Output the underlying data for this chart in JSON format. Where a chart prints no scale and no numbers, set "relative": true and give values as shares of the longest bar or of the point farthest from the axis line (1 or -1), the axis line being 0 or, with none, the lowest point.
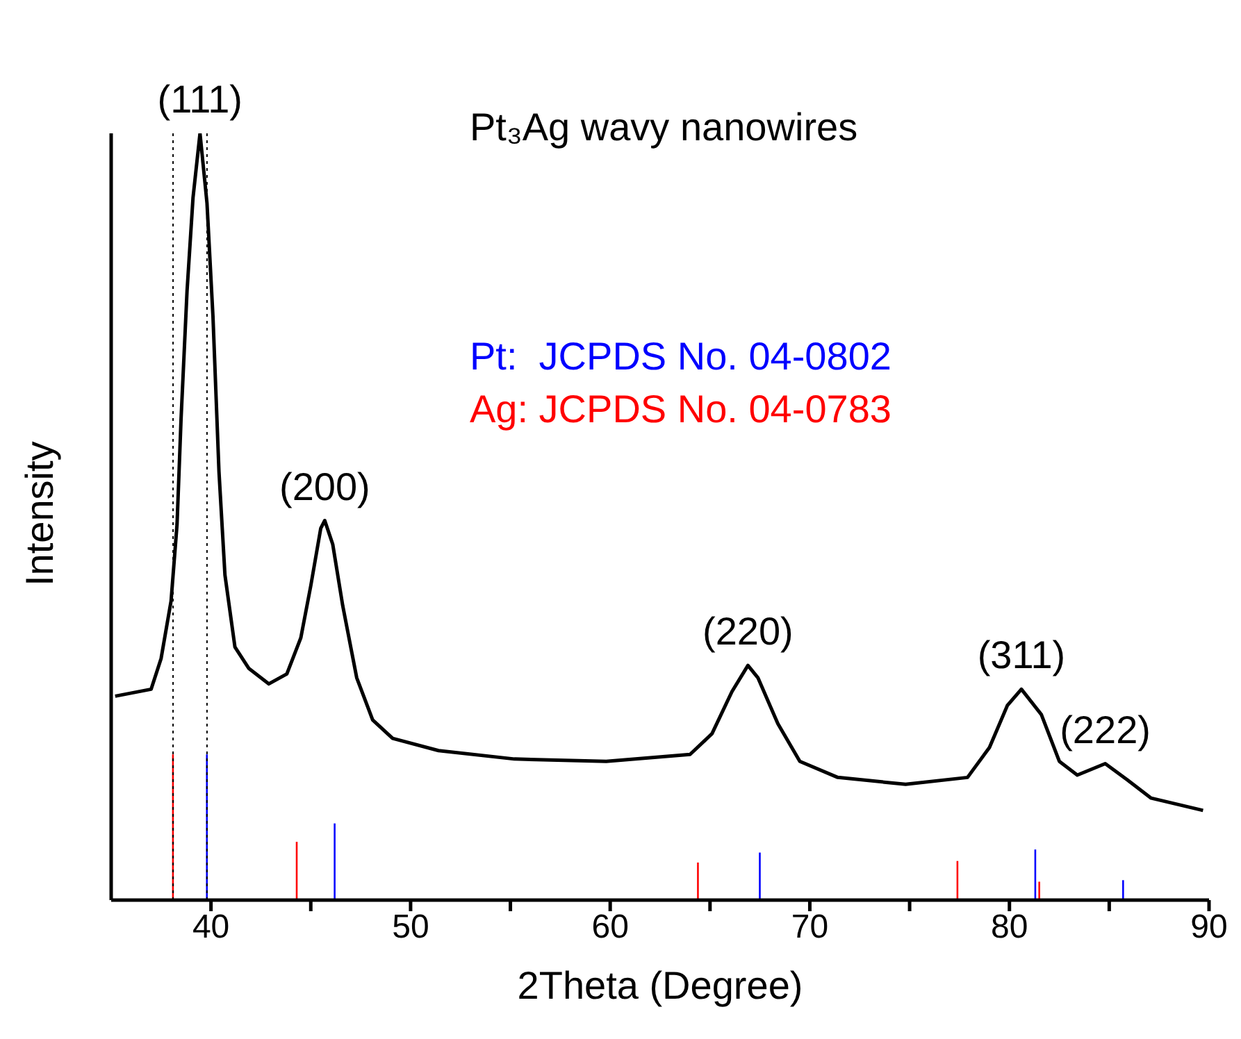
{
  "chart_data": {
    "type": "line",
    "title": "Pt₃Ag wavy nanowires",
    "xlabel": "2Theta (Degree)",
    "ylabel": "Intensity",
    "relative": true,
    "xlim": [
      35,
      90
    ],
    "xticks": [
      40,
      {
        "value": 45,
        "label": null
      },
      50,
      {
        "value": 55,
        "label": null
      },
      60,
      {
        "value": 65,
        "label": null
      },
      70,
      {
        "value": 75,
        "label": null
      },
      80,
      {
        "value": 85,
        "label": null
      },
      90
    ],
    "legend": "right",
    "ref_lines": [
      {
        "axis": "x",
        "value": 38.1,
        "color": "#000000",
        "line_style": "dotted"
      },
      {
        "axis": "x",
        "value": 39.8,
        "color": "#000000",
        "line_style": "dotted"
      }
    ],
    "annotations": [
      {
        "text": "(111)",
        "x": 39.45,
        "y": 1
      },
      {
        "text": "(200)",
        "x": 45.7,
        "y": 0.495
      },
      {
        "text": "(220)",
        "x": 66.9,
        "y": 0.306
      },
      {
        "text": "(311)",
        "x": 80.6,
        "y": 0.275
      },
      {
        "text": "(222)",
        "x": 84.8,
        "y": 0.178
      }
    ],
    "series": [
      {
        "color": "#000000",
        "x": [
          35.2,
          37.0,
          37.5,
          38.0,
          38.3,
          38.5,
          38.8,
          39.1,
          39.45,
          39.8,
          40.1,
          40.4,
          40.7,
          41.2,
          41.9,
          42.9,
          43.8,
          44.5,
          45.0,
          45.5,
          45.7,
          46.1,
          46.6,
          47.3,
          48.1,
          49.1,
          51.4,
          55.2,
          59.8,
          64.0,
          65.1,
          66.1,
          66.9,
          67.4,
          68.4,
          69.5,
          71.4,
          74.8,
          77.9,
          79.0,
          79.9,
          80.6,
          81.6,
          82.5,
          83.4,
          84.8,
          85.9,
          87.1,
          89.7
        ],
        "values": [
          0.266,
          0.275,
          0.315,
          0.39,
          0.49,
          0.627,
          0.794,
          0.916,
          1,
          0.909,
          0.761,
          0.559,
          0.424,
          0.33,
          0.302,
          0.282,
          0.295,
          0.342,
          0.41,
          0.485,
          0.495,
          0.464,
          0.384,
          0.29,
          0.235,
          0.211,
          0.195,
          0.184,
          0.181,
          0.19,
          0.217,
          0.272,
          0.306,
          0.29,
          0.23,
          0.181,
          0.16,
          0.151,
          0.16,
          0.199,
          0.254,
          0.275,
          0.242,
          0.181,
          0.163,
          0.178,
          0.157,
          0.133,
          0.117
        ]
      },
      {
        "type": "bar",
        "name": "Pt:  JCPDS No. 04-0802",
        "color": "#0000ff",
        "x": [
          39.8,
          46.2,
          67.5,
          81.3,
          85.7
        ],
        "values": [
          0.19,
          0.1,
          0.062,
          0.066,
          0.026
        ]
      },
      {
        "type": "bar",
        "name": "Ag: JCPDS No. 04-0783",
        "color": "#ff0000",
        "x": [
          38.1,
          44.3,
          64.4,
          77.4,
          81.5
        ],
        "values": [
          0.19,
          0.076,
          0.049,
          0.051,
          0.024
        ]
      }
    ]
  }
}
